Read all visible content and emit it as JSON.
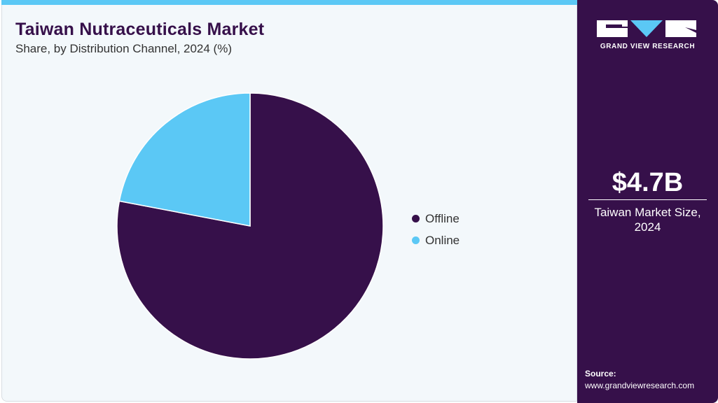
{
  "header": {
    "title": "Taiwan Nutraceuticals Market",
    "subtitle": "Share, by Distribution Channel, 2024 (%)"
  },
  "colors": {
    "accent": "#5bc8f5",
    "brand": "#36104a",
    "background": "#f3f8fb"
  },
  "sidebar": {
    "logo_text": "GRAND VIEW RESEARCH",
    "market_value": "$4.7B",
    "market_label_line1": "Taiwan Market Size,",
    "market_label_line2": "2024",
    "source_label": "Source:",
    "source_url": "www.grandviewresearch.com"
  },
  "chart_data": {
    "type": "pie",
    "title": "Taiwan Nutraceuticals Market",
    "subtitle": "Share, by Distribution Channel, 2024 (%)",
    "categories": [
      "Offline",
      "Online"
    ],
    "values": [
      78,
      22
    ],
    "colors": [
      "#36104a",
      "#5bc8f5"
    ],
    "legend": {
      "position": "right",
      "entries": [
        "Offline",
        "Online"
      ]
    },
    "start": "12 o'clock, clockwise"
  }
}
